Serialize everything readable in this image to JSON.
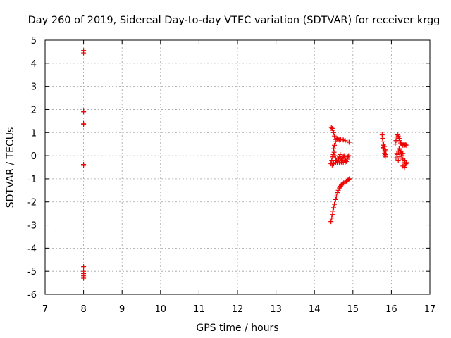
{
  "chart_data": {
    "type": "scatter",
    "title": "Day 260 of 2019, Sidereal Day-to-day VTEC variation (SDTVAR) for receiver krgg",
    "xlabel": "GPS time / hours",
    "ylabel": "SDTVAR / TECUs",
    "xlim": [
      7,
      17
    ],
    "ylim": [
      -6,
      5
    ],
    "xticks": [
      "7",
      "8",
      "9",
      "10",
      "11",
      "12",
      "13",
      "14",
      "15",
      "16",
      "17"
    ],
    "yticks": [
      "5",
      "4",
      "3",
      "2",
      "1",
      "0",
      "-1",
      "-2",
      "-3",
      "-4",
      "-5",
      "-6"
    ],
    "grid": true,
    "marker": "+",
    "color": "#ee0000",
    "series": [
      {
        "name": "SDTVAR",
        "x": [
          8.0,
          8.0,
          8.0,
          8.0,
          8.0,
          8.0,
          8.0,
          8.0,
          8.0,
          8.0,
          8.0,
          8.0,
          8.0,
          14.43,
          14.45,
          14.47,
          14.48,
          14.5,
          14.52,
          14.55,
          14.57,
          14.6,
          14.62,
          14.65,
          14.68,
          14.7,
          14.73,
          14.76,
          14.8,
          14.83,
          14.86,
          14.89,
          14.91,
          14.44,
          14.46,
          14.48,
          14.5,
          14.52,
          14.54,
          14.43,
          14.45,
          14.47,
          14.49,
          14.51,
          14.53,
          14.55,
          14.57,
          14.59,
          14.61,
          14.63,
          14.65,
          14.67,
          14.69,
          14.71,
          14.73,
          14.75,
          14.77,
          14.79,
          14.81,
          14.83,
          14.85,
          14.87,
          14.89,
          14.5,
          14.52,
          14.55,
          14.58,
          14.6,
          14.62,
          14.65,
          14.68,
          14.72,
          14.75,
          14.8,
          14.85,
          14.9,
          14.46,
          14.5,
          14.55,
          14.6,
          14.65,
          14.7,
          14.75,
          14.8,
          15.76,
          15.77,
          15.78,
          15.79,
          15.8,
          15.81,
          15.82,
          15.83,
          15.84,
          15.85,
          15.86,
          15.78,
          15.8,
          15.82,
          15.84,
          16.1,
          16.12,
          16.14,
          16.16,
          16.18,
          16.2,
          16.22,
          16.24,
          16.26,
          16.28,
          16.3,
          16.32,
          16.34,
          16.36,
          16.38,
          16.4,
          16.12,
          16.15,
          16.18,
          16.21,
          16.24,
          16.27,
          16.3,
          16.33,
          16.36,
          16.39,
          16.14,
          16.18,
          16.22,
          16.26,
          16.3,
          16.34,
          16.38,
          16.2,
          16.25,
          16.3,
          16.35
        ],
        "y": [
          4.55,
          4.45,
          1.93,
          1.9,
          1.4,
          1.35,
          -0.38,
          -0.42,
          -4.8,
          -5.0,
          -5.1,
          -5.2,
          -5.3,
          -2.85,
          -2.7,
          -2.55,
          -2.4,
          -2.25,
          -2.1,
          -1.9,
          -1.75,
          -1.6,
          -1.5,
          -1.4,
          -1.32,
          -1.27,
          -1.22,
          -1.18,
          -1.14,
          -1.1,
          -1.06,
          -1.03,
          -1.0,
          1.22,
          1.18,
          1.1,
          1.0,
          0.85,
          0.7,
          -0.35,
          -0.2,
          -0.05,
          0.05,
          0.15,
          0.0,
          -0.1,
          -0.2,
          -0.3,
          -0.25,
          -0.15,
          -0.05,
          0.05,
          -0.1,
          -0.2,
          -0.15,
          -0.05,
          0.0,
          -0.1,
          -0.2,
          -0.25,
          -0.15,
          -0.05,
          0.0,
          0.3,
          0.45,
          0.6,
          0.7,
          0.75,
          0.72,
          0.68,
          0.7,
          0.72,
          0.68,
          0.65,
          0.6,
          0.58,
          -0.4,
          -0.35,
          -0.3,
          -0.3,
          -0.32,
          -0.28,
          -0.3,
          -0.28,
          0.9,
          0.75,
          0.6,
          0.45,
          0.3,
          0.2,
          0.1,
          0.0,
          -0.05,
          0.05,
          0.2,
          0.35,
          0.5,
          0.4,
          0.25,
          0.5,
          0.65,
          0.8,
          0.9,
          0.85,
          0.75,
          0.65,
          0.55,
          0.5,
          0.5,
          0.45,
          0.5,
          0.45,
          0.48,
          0.45,
          0.5,
          -0.1,
          0.05,
          0.2,
          0.3,
          0.15,
          0.0,
          -0.15,
          -0.3,
          -0.4,
          -0.3,
          0.1,
          -0.2,
          -0.05,
          0.1,
          -0.45,
          -0.5,
          -0.35,
          0.3,
          0.2,
          0.1,
          -0.2
        ]
      }
    ]
  }
}
